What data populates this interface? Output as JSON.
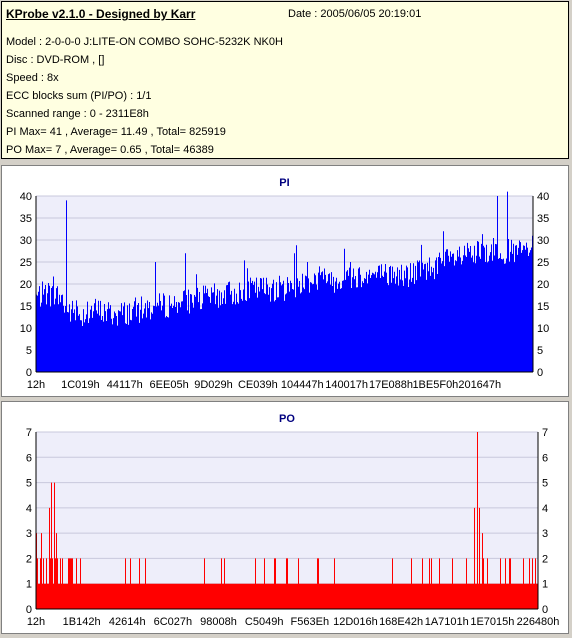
{
  "header": {
    "title": "KProbe v2.1.0 - Designed by Karr",
    "date": "Date : 2005/06/05 20:19:01",
    "lines": [
      "Model : 2-0-0-0 J:LITE-ON COMBO SOHC-5232K NK0H",
      "Disc : DVD-ROM ,  []",
      "Speed : 8x",
      "ECC blocks sum (PI/PO) : 1/1",
      "Scanned range : 0 - 2311E8h",
      "PI Max= 41 , Average= 11.49 , Total= 825919",
      "PO Max= 7 , Average= 0.65 , Total= 46389"
    ]
  },
  "colors": {
    "pi": "#0000ff",
    "po": "#ff0000",
    "plot_bg": "#eeeefa",
    "grid": "#c8c8dc",
    "title": "#00007f"
  },
  "chart_data": [
    {
      "type": "bar",
      "title": "PI",
      "ylim": [
        0,
        40
      ],
      "yticks": [
        0,
        5,
        10,
        15,
        20,
        25,
        30,
        35,
        40
      ],
      "xtick_labels": [
        "12h",
        "1C019h",
        "44117h",
        "6EE05h",
        "9D029h",
        "CE039h",
        "104447h",
        "140017h",
        "17E088h",
        "1BE5F0h",
        "201647h"
      ],
      "profile": [
        [
          0,
          17
        ],
        [
          0.02,
          18
        ],
        [
          0.05,
          17
        ],
        [
          0.06,
          14
        ],
        [
          0.09,
          13
        ],
        [
          0.12,
          14
        ],
        [
          0.16,
          13
        ],
        [
          0.2,
          14
        ],
        [
          0.25,
          15
        ],
        [
          0.3,
          16
        ],
        [
          0.35,
          17
        ],
        [
          0.4,
          18
        ],
        [
          0.45,
          19
        ],
        [
          0.5,
          19
        ],
        [
          0.53,
          20
        ],
        [
          0.55,
          21
        ],
        [
          0.6,
          21
        ],
        [
          0.65,
          22
        ],
        [
          0.7,
          22
        ],
        [
          0.75,
          22
        ],
        [
          0.8,
          24
        ],
        [
          0.85,
          26
        ],
        [
          0.9,
          27
        ],
        [
          0.93,
          28
        ],
        [
          0.96,
          27
        ],
        [
          1.0,
          28
        ]
      ],
      "spikes": [
        [
          0.06,
          39
        ],
        [
          0.24,
          25
        ],
        [
          0.3,
          27
        ],
        [
          0.52,
          27
        ],
        [
          0.62,
          28
        ],
        [
          0.82,
          32
        ],
        [
          0.95,
          41
        ],
        [
          0.93,
          40
        ]
      ]
    },
    {
      "type": "bar",
      "title": "PO",
      "ylim": [
        0,
        7
      ],
      "yticks": [
        0,
        1,
        2,
        3,
        4,
        5,
        6,
        7
      ],
      "xtick_labels": [
        "12h",
        "1B142h",
        "42614h",
        "6C027h",
        "98008h",
        "C5049h",
        "F563Eh",
        "12D016h",
        "168E42h",
        "1A7101h",
        "1E7015h",
        "226480h"
      ],
      "spikes": [
        [
          0.0,
          3
        ],
        [
          0.01,
          3
        ],
        [
          0.025,
          4
        ],
        [
          0.03,
          5
        ],
        [
          0.035,
          5
        ],
        [
          0.04,
          3
        ],
        [
          0.88,
          7
        ],
        [
          0.875,
          4
        ],
        [
          0.885,
          4
        ],
        [
          0.89,
          3
        ]
      ]
    }
  ]
}
